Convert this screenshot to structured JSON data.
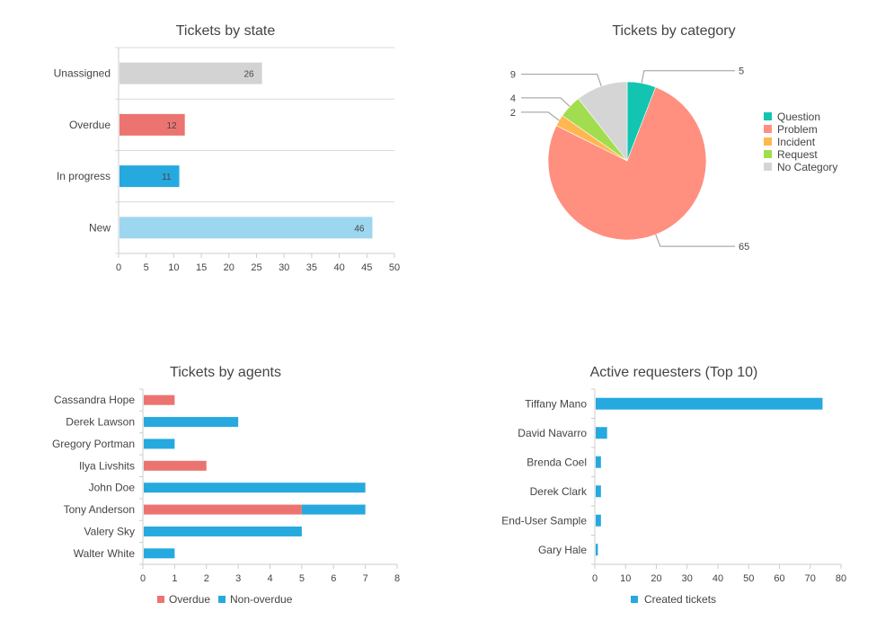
{
  "chart_data": [
    {
      "type": "bar",
      "orientation": "horizontal",
      "title": "Tickets by state",
      "categories": [
        "Unassigned",
        "Overdue",
        "In progress",
        "New"
      ],
      "values": [
        26,
        12,
        11,
        46
      ],
      "colors": [
        "#d3d3d3",
        "#ec7470",
        "#26a9de",
        "#9dd6ef"
      ],
      "data_labels": [
        "26",
        "12",
        "11",
        "46"
      ],
      "xlim": [
        0,
        50
      ],
      "xticks": [
        0,
        5,
        10,
        15,
        20,
        25,
        30,
        35,
        40,
        45,
        50
      ],
      "xtick_labels": [
        "0",
        "5",
        "10",
        "15",
        "20",
        "25",
        "30",
        "35",
        "40",
        "45",
        "50"
      ],
      "grid": true
    },
    {
      "type": "pie",
      "title": "Tickets by category",
      "labels": [
        "Question",
        "Problem",
        "Incident",
        "Request",
        "No Category"
      ],
      "values": [
        5,
        65,
        2,
        4,
        9
      ],
      "value_labels": [
        "5",
        "65",
        "2",
        "4",
        "9"
      ],
      "colors": [
        "#13c5b1",
        "#ff8f7f",
        "#ffb750",
        "#a2dd4f",
        "#d5d5d5"
      ],
      "legend_position": "right"
    },
    {
      "type": "bar",
      "orientation": "horizontal",
      "stacked": true,
      "title": "Tickets by agents",
      "categories": [
        "Cassandra Hope",
        "Derek Lawson",
        "Gregory Portman",
        "Ilya Livshits",
        "John Doe",
        "Tony Anderson",
        "Valery Sky",
        "Walter White"
      ],
      "series": [
        {
          "name": "Overdue",
          "color": "#ec7470",
          "values": [
            1,
            0,
            0,
            2,
            0,
            5,
            0,
            0
          ]
        },
        {
          "name": "Non-overdue",
          "color": "#26a9de",
          "values": [
            0,
            3,
            1,
            0,
            7,
            2,
            5,
            1
          ]
        }
      ],
      "xlim": [
        0,
        8
      ],
      "xticks": [
        0,
        1,
        2,
        3,
        4,
        5,
        6,
        7,
        8
      ],
      "xtick_labels": [
        "0",
        "1",
        "2",
        "3",
        "4",
        "5",
        "6",
        "7",
        "8"
      ],
      "legend": [
        "Overdue",
        "Non-overdue"
      ],
      "legend_position": "bottom"
    },
    {
      "type": "bar",
      "orientation": "horizontal",
      "title": "Active requesters (Top 10)",
      "categories": [
        "Tiffany Mano",
        "David Navarro",
        "Brenda Coel",
        "Derek Clark",
        "End-User Sample",
        "Gary Hale"
      ],
      "series": [
        {
          "name": "Created tickets",
          "color": "#26a9de",
          "values": [
            74,
            4,
            2,
            2,
            2,
            1
          ]
        }
      ],
      "xlim": [
        0,
        80
      ],
      "xticks": [
        0,
        10,
        20,
        30,
        40,
        50,
        60,
        70,
        80
      ],
      "xtick_labels": [
        "0",
        "10",
        "20",
        "30",
        "40",
        "50",
        "60",
        "70",
        "80"
      ],
      "legend": [
        "Created tickets"
      ],
      "legend_position": "bottom"
    }
  ]
}
